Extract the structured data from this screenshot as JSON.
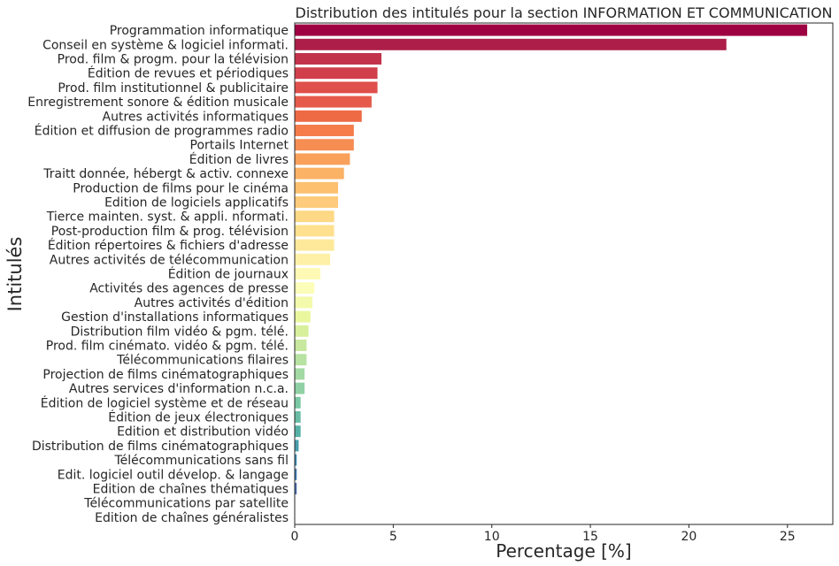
{
  "chart_data": {
    "type": "bar",
    "orientation": "horizontal",
    "title": "Distribution des intitulés pour la section INFORMATION ET COMMUNICATION",
    "xlabel": "Percentage [%]",
    "ylabel": "Intitulés",
    "xlim": [
      0,
      27.3
    ],
    "xticks": [
      0,
      5,
      10,
      15,
      20,
      25
    ],
    "grid": false,
    "palette": "Spectral",
    "categories": [
      "Programmation informatique",
      "Conseil en système & logiciel informati.",
      "Prod. film & progm. pour la télévision",
      "Édition de revues et périodiques",
      "Prod. film institutionnel & publicitaire",
      "Enregistrement sonore & édition musicale",
      "Autres activités informatiques",
      "Édition et diffusion de programmes radio",
      "Portails Internet",
      "Édition de livres",
      "Traitt donnée, hébergt & activ. connexe",
      "Production de films pour le cinéma",
      "Edition de logiciels applicatifs",
      "Tierce mainten. syst. & appli. nformati.",
      "Post-production film & prog. télévision",
      "Édition répertoires & fichiers d'adresse",
      "Autres activités de télécommunication",
      "Édition de journaux",
      "Activités des agences de presse",
      "Autres activités d'édition",
      "Gestion d'installations informatiques",
      "Distribution film vidéo & pgm. télé.",
      "Prod. film cinémato. vidéo & pgm. télé.",
      "Télécommunications filaires",
      "Projection de films cinématographiques",
      "Autres services d'information n.c.a.",
      "Édition de logiciel système et de réseau",
      "Édition de jeux électroniques",
      "Edition et distribution vidéo",
      "Distribution de films cinématographiques",
      "Télécommunications sans fil",
      "Edit. logiciel outil dévelop. & langage",
      "Edition de chaînes thématiques",
      "Télécommunications par satellite",
      "Edition de chaînes généralistes"
    ],
    "values": [
      26.0,
      21.9,
      4.4,
      4.2,
      4.2,
      3.9,
      3.4,
      3.0,
      3.0,
      2.8,
      2.5,
      2.2,
      2.2,
      2.0,
      2.0,
      2.0,
      1.8,
      1.3,
      1.0,
      0.9,
      0.8,
      0.7,
      0.6,
      0.6,
      0.5,
      0.5,
      0.3,
      0.3,
      0.3,
      0.2,
      0.1,
      0.1,
      0.1,
      0.02,
      0.02
    ],
    "colors": [
      "#9e0142",
      "#ad1f48",
      "#c2324b",
      "#d13f4d",
      "#df4f4b",
      "#e55a4a",
      "#ed6a44",
      "#f47d4b",
      "#f68d52",
      "#f9a05a",
      "#fbb264",
      "#fcc06f",
      "#fdcb7b",
      "#fdd885",
      "#fee08f",
      "#fee99a",
      "#fef0a7",
      "#fefab5",
      "#fbfdb8",
      "#f3faab",
      "#ebf79e",
      "#d8ef9b",
      "#c7e89e",
      "#b7e2a1",
      "#a3d9a3",
      "#8fd1a4",
      "#7bc8a4",
      "#69bca6",
      "#58b1a7",
      "#4a9dad",
      "#3d8cb1",
      "#3e7cb8",
      "#4b6bb0",
      "#5956a5",
      "#5e4fa2"
    ]
  }
}
